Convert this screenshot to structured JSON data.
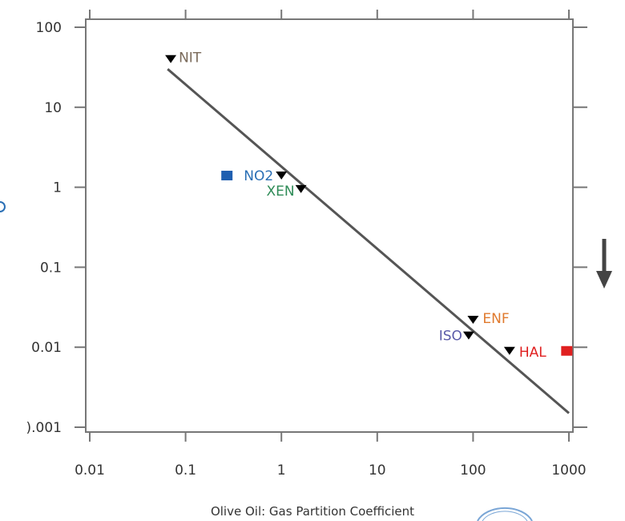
{
  "chart_data": {
    "type": "scatter",
    "title": "",
    "xlabel": "Olive Oil: Gas Partition Coefficient",
    "ylabel": "",
    "x_scale": "log",
    "y_scale": "log",
    "xlim": [
      0.01,
      1000
    ],
    "ylim": [
      0.001,
      100
    ],
    "x_ticks": [
      0.01,
      0.1,
      1,
      10,
      100,
      1000
    ],
    "x_tick_labels": [
      "0.01",
      "0.1",
      "1",
      "10",
      "100",
      "1000"
    ],
    "y_ticks": [
      0.001,
      0.01,
      0.1,
      1,
      10,
      100
    ],
    "y_tick_labels": [
      ").001",
      "0.01",
      "0.1",
      "1",
      "10",
      "100"
    ],
    "grid": false,
    "points": [
      {
        "label": "NIT",
        "x": 0.07,
        "y": 40,
        "color": "#7a6a5a"
      },
      {
        "label": "NO2",
        "x": 1.0,
        "y": 1.4,
        "color": "#2a6fb5"
      },
      {
        "label": "XEN",
        "x": 1.6,
        "y": 0.95,
        "color": "#2e8b57"
      },
      {
        "label": "ENF",
        "x": 100,
        "y": 0.022,
        "color": "#e07a2e"
      },
      {
        "label": "ISO",
        "x": 90,
        "y": 0.014,
        "color": "#5a5aa8"
      },
      {
        "label": "HAL",
        "x": 240,
        "y": 0.009,
        "color": "#e02020"
      }
    ],
    "fit_line": {
      "x": [
        0.065,
        1000
      ],
      "y": [
        30,
        0.0015
      ]
    },
    "markers": [
      {
        "name": "blue-square",
        "x": 0.27,
        "y": 1.4,
        "color": "#1f5fb0"
      },
      {
        "name": "red-square",
        "x": 950,
        "y": 0.009,
        "color": "#e02020"
      }
    ]
  },
  "colors": {
    "axis": "#777777",
    "fit_line": "#555555",
    "marker": "#000000",
    "arrow": "#444444",
    "circle": "#7aa6d6"
  }
}
